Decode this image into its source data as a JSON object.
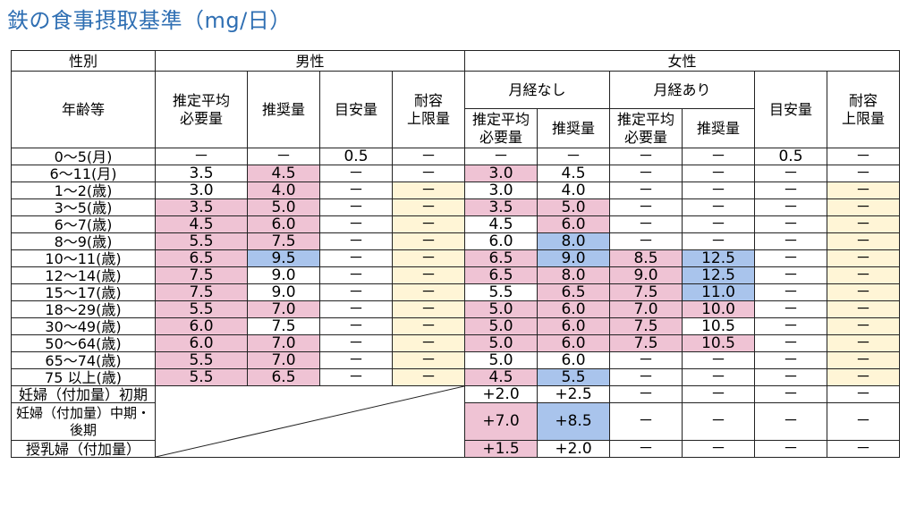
{
  "title": "鉄の食事摂取基準（mg/日）",
  "headers": {
    "gender": "性別",
    "male": "男性",
    "female": "女性",
    "age": "年齢等",
    "est_req": [
      "推定平均",
      "必要量"
    ],
    "rec": "推奨量",
    "adequate": "目安量",
    "upper": [
      "耐容",
      "上限量"
    ],
    "no_menses": "月経なし",
    "with_menses": "月経あり"
  },
  "colors": {
    "pink": "#efc3d4",
    "blue": "#a9c4ec",
    "yellow": "#fff5d6",
    "title": "#2f6fb3"
  },
  "rows": [
    {
      "age": "0～5(月)",
      "cells": [
        "－",
        "－",
        "0.5",
        "－",
        "－",
        "－",
        "－",
        "－",
        "0.5",
        "－"
      ],
      "colors": [
        "",
        "",
        "",
        "",
        "",
        "",
        "",
        "",
        "",
        ""
      ]
    },
    {
      "age": "6～11(月)",
      "cells": [
        "3.5",
        "4.5",
        "－",
        "－",
        "3.0",
        "4.5",
        "－",
        "－",
        "－",
        "－"
      ],
      "colors": [
        "",
        "pk",
        "",
        "",
        "pk",
        "",
        "",
        "",
        "",
        ""
      ]
    },
    {
      "age": "1～2(歳)",
      "cells": [
        "3.0",
        "4.0",
        "－",
        "－",
        "3.0",
        "4.0",
        "－",
        "－",
        "－",
        "－"
      ],
      "colors": [
        "",
        "pk",
        "",
        "yl",
        "",
        "",
        "",
        "",
        "",
        "yl"
      ]
    },
    {
      "age": "3～5(歳)",
      "cells": [
        "3.5",
        "5.0",
        "－",
        "－",
        "3.5",
        "5.0",
        "－",
        "－",
        "－",
        "－"
      ],
      "colors": [
        "pk",
        "pk",
        "",
        "yl",
        "pk",
        "pk",
        "",
        "",
        "",
        "yl"
      ]
    },
    {
      "age": "6～7(歳)",
      "cells": [
        "4.5",
        "6.0",
        "－",
        "－",
        "4.5",
        "6.0",
        "－",
        "－",
        "－",
        "－"
      ],
      "colors": [
        "pk",
        "pk",
        "",
        "yl",
        "",
        "pk",
        "",
        "",
        "",
        "yl"
      ]
    },
    {
      "age": "8～9(歳)",
      "cells": [
        "5.5",
        "7.5",
        "－",
        "－",
        "6.0",
        "8.0",
        "－",
        "－",
        "－",
        "－"
      ],
      "colors": [
        "pk",
        "pk",
        "",
        "yl",
        "",
        "bl",
        "",
        "",
        "",
        "yl"
      ]
    },
    {
      "age": "10～11(歳)",
      "cells": [
        "6.5",
        "9.5",
        "－",
        "－",
        "6.5",
        "9.0",
        "8.5",
        "12.5",
        "－",
        "－"
      ],
      "colors": [
        "pk",
        "bl",
        "",
        "yl",
        "pk",
        "bl",
        "pk",
        "bl",
        "",
        "yl"
      ]
    },
    {
      "age": "12～14(歳)",
      "cells": [
        "7.5",
        "9.0",
        "－",
        "－",
        "6.5",
        "8.0",
        "9.0",
        "12.5",
        "－",
        "－"
      ],
      "colors": [
        "pk",
        "",
        "",
        "yl",
        "pk",
        "pk",
        "pk",
        "bl",
        "",
        "yl"
      ]
    },
    {
      "age": "15～17(歳)",
      "cells": [
        "7.5",
        "9.0",
        "－",
        "－",
        "5.5",
        "6.5",
        "7.5",
        "11.0",
        "－",
        "－"
      ],
      "colors": [
        "pk",
        "",
        "",
        "yl",
        "",
        "pk",
        "pk",
        "bl",
        "",
        "yl"
      ]
    },
    {
      "age": "18～29(歳)",
      "cells": [
        "5.5",
        "7.0",
        "－",
        "－",
        "5.0",
        "6.0",
        "7.0",
        "10.0",
        "－",
        "－"
      ],
      "colors": [
        "pk",
        "pk",
        "",
        "yl",
        "pk",
        "pk",
        "pk",
        "pk",
        "",
        "yl"
      ]
    },
    {
      "age": "30～49(歳)",
      "cells": [
        "6.0",
        "7.5",
        "－",
        "－",
        "5.0",
        "6.0",
        "7.5",
        "10.5",
        "－",
        "－"
      ],
      "colors": [
        "pk",
        "",
        "",
        "yl",
        "pk",
        "pk",
        "pk",
        "",
        "",
        "yl"
      ]
    },
    {
      "age": "50～64(歳)",
      "cells": [
        "6.0",
        "7.0",
        "－",
        "－",
        "5.0",
        "6.0",
        "7.5",
        "10.5",
        "－",
        "－"
      ],
      "colors": [
        "pk",
        "pk",
        "",
        "yl",
        "pk",
        "pk",
        "pk",
        "pk",
        "",
        "yl"
      ]
    },
    {
      "age": "65～74(歳)",
      "cells": [
        "5.5",
        "7.0",
        "－",
        "－",
        "5.0",
        "6.0",
        "－",
        "－",
        "－",
        "－"
      ],
      "colors": [
        "pk",
        "pk",
        "",
        "yl",
        "",
        "",
        "",
        "",
        "",
        "yl"
      ]
    },
    {
      "age": "75 以上(歳)",
      "cells": [
        "5.5",
        "6.5",
        "－",
        "－",
        "4.5",
        "5.5",
        "－",
        "－",
        "－",
        "－"
      ],
      "colors": [
        "pk",
        "pk",
        "",
        "yl",
        "pk",
        "bl",
        "",
        "",
        "",
        "yl"
      ]
    }
  ],
  "special_rows": [
    {
      "age": "妊婦（付加量）初期",
      "cells": [
        "+2.0",
        "+2.5",
        "－",
        "－",
        "－",
        "－"
      ],
      "colors": [
        "",
        "",
        "",
        "",
        "",
        ""
      ]
    },
    {
      "age": "妊婦（付加量）中期・後期",
      "cells": [
        "+7.0",
        "+8.5",
        "－",
        "－",
        "－",
        "－"
      ],
      "colors": [
        "pk",
        "bl",
        "",
        "",
        "",
        ""
      ]
    },
    {
      "age": "授乳婦（付加量）",
      "cells": [
        "+1.5",
        "+2.0",
        "－",
        "－",
        "－",
        "－"
      ],
      "colors": [
        "pk",
        "",
        "",
        "",
        "",
        ""
      ]
    }
  ]
}
